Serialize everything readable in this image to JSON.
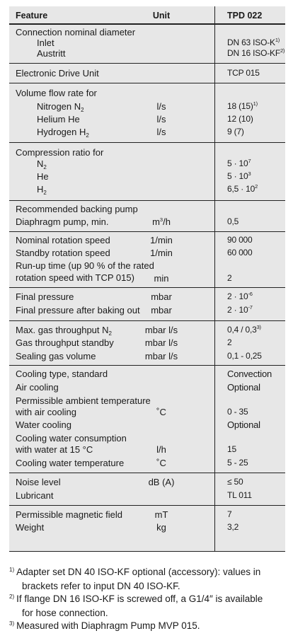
{
  "header": {
    "feature": "Feature",
    "unit": "Unit",
    "model": "TPD 022"
  },
  "rows": {
    "conn": {
      "label": "Connection nominal diameter"
    },
    "inlet": {
      "label": "Inlet",
      "value": "DN 63 ISO-K",
      "note": "1)"
    },
    "austritt": {
      "label": "Austritt",
      "value": "DN 16 ISO-KF",
      "note": "2)"
    },
    "edu": {
      "label": "Electronic Drive Unit",
      "value": "TCP 015"
    },
    "vfr": {
      "label": "Volume flow rate for"
    },
    "n2": {
      "label": "Nitrogen N",
      "sub": "2",
      "unit": "l/s",
      "value": "18 (15)",
      "note": "1)"
    },
    "he": {
      "label": "Helium He",
      "unit": "l/s",
      "value": "12 (10)"
    },
    "h2": {
      "label": "Hydrogen H",
      "sub": "2",
      "unit": "l/s",
      "value": "9 (7)"
    },
    "cr": {
      "label": "Compression ratio for"
    },
    "cr_n2": {
      "label": "N",
      "sub": "2",
      "value": "5 · 10",
      "exp": "7"
    },
    "cr_he": {
      "label": "He",
      "value": "5 · 10",
      "exp": "3"
    },
    "cr_h2": {
      "label": "H",
      "sub": "2",
      "value": "6,5 · 10",
      "exp": "2"
    },
    "rbp": {
      "label": "Recommended backing pump"
    },
    "dp": {
      "label": "Diaphragm pump, min.",
      "unit": "m",
      "unit_exp": "3",
      "unit_tail": "/h",
      "value": "0,5"
    },
    "nrs": {
      "label": "Nominal rotation speed",
      "unit": "1/min",
      "value": "90 000"
    },
    "srs": {
      "label": "Standby rotation speed",
      "unit": "1/min",
      "value": "60 000"
    },
    "rut1": {
      "label": "Run-up time (up 90 % of the rated"
    },
    "rut2": {
      "label": "rotation speed with TCP 015)",
      "unit": "min",
      "value": "2"
    },
    "fp": {
      "label": "Final pressure",
      "unit": "mbar",
      "value": "2 · 10",
      "exp": "-6"
    },
    "fpb": {
      "label": "Final pressure after baking out",
      "unit": "mbar",
      "value": "2 · 10",
      "exp": "-7"
    },
    "mgt": {
      "label": "Max. gas throughput N",
      "sub": "2",
      "unit": "mbar l/s",
      "value": "0,4 / 0,3",
      "note": "3)"
    },
    "gts": {
      "label": "Gas throughput standby",
      "unit": "mbar l/s",
      "value": "2"
    },
    "sgv": {
      "label": "Sealing gas volume",
      "unit": "mbar l/s",
      "value": "0,1 - 0,25"
    },
    "cts": {
      "label": "Cooling type, standard",
      "value": "Convection"
    },
    "ac": {
      "label": "Air cooling",
      "value": "Optional"
    },
    "pat1": {
      "label": "Permissible ambient temperature"
    },
    "pat2": {
      "label": "with air cooling",
      "unit": "˚C",
      "value": "0 - 35"
    },
    "wc": {
      "label": "Water cooling",
      "value": "Optional"
    },
    "cwc1": {
      "label": "Cooling water consumption"
    },
    "cwc2": {
      "label": "with water at 15 °C",
      "unit": "l/h",
      "value": "15"
    },
    "cwt": {
      "label": "Cooling water temperature",
      "unit": "˚C",
      "value": "5 - 25"
    },
    "nl": {
      "label": "Noise level",
      "unit": "dB (A)",
      "value": "≤ 50"
    },
    "lub": {
      "label": "Lubricant",
      "value": "TL 011"
    },
    "pmf": {
      "label": "Permissible magnetic field",
      "unit": "mT",
      "value": "7"
    },
    "wt": {
      "label": "Weight",
      "unit": "kg",
      "value": "3,2"
    }
  },
  "footnotes": [
    {
      "mark": "1)",
      "line1": "Adapter set DN 40 ISO-KF optional (accessory): values in",
      "line2": "brackets refer to input DN 40 ISO-KF."
    },
    {
      "mark": "2)",
      "line1": "If flange DN 16 ISO-KF is screwed off, a G1/4″ is available",
      "line2": "for hose connection."
    },
    {
      "mark": "3)",
      "line1": "Measured with Diaphragm Pump MVP 015.",
      "line2": ""
    }
  ]
}
